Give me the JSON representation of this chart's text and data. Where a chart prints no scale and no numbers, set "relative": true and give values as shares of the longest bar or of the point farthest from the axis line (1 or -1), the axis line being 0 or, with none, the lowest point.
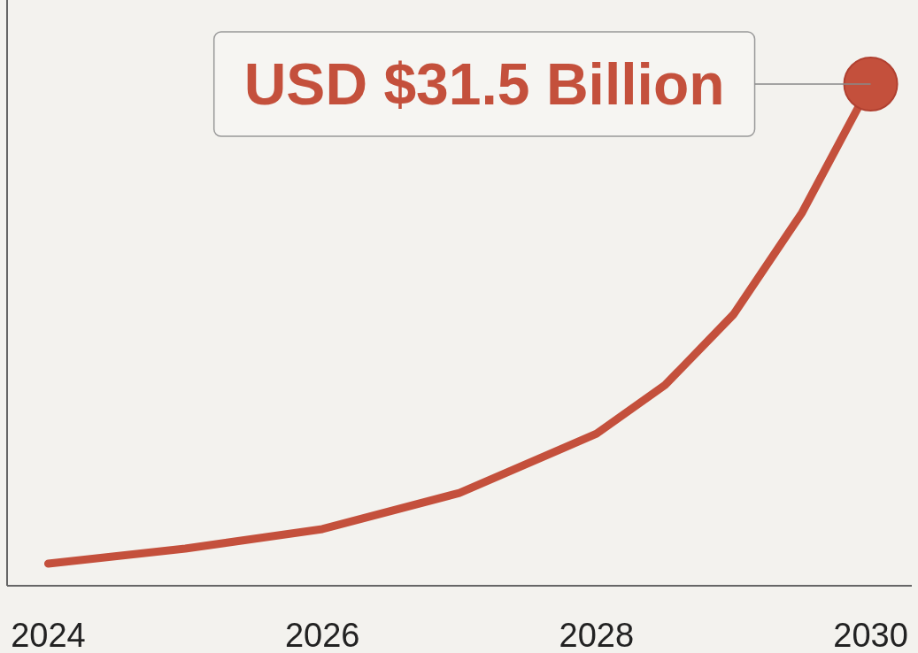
{
  "chart_data": {
    "type": "line",
    "relative": true,
    "xlim": [
      2023.7,
      2030.3
    ],
    "xticks": [
      2024,
      2026,
      2028,
      2030
    ],
    "grid": false,
    "line_style": "solid",
    "series": [
      {
        "color": "#c4503c",
        "marker": "none",
        "x": [
          2024,
          2025,
          2026,
          2027,
          2028,
          2028.5,
          2029,
          2029.5,
          2030
        ],
        "values": [
          0.044,
          0.074,
          0.113,
          0.185,
          0.303,
          0.4,
          0.541,
          0.744,
          1
        ]
      },
      {
        "type": "scatter",
        "marker": "circle",
        "color": "#c4503c",
        "x": [
          2030
        ],
        "values": [
          1
        ]
      }
    ],
    "annotations": [
      {
        "text": "USD $31.5 Billion",
        "x": 2030,
        "y": 1
      }
    ]
  }
}
